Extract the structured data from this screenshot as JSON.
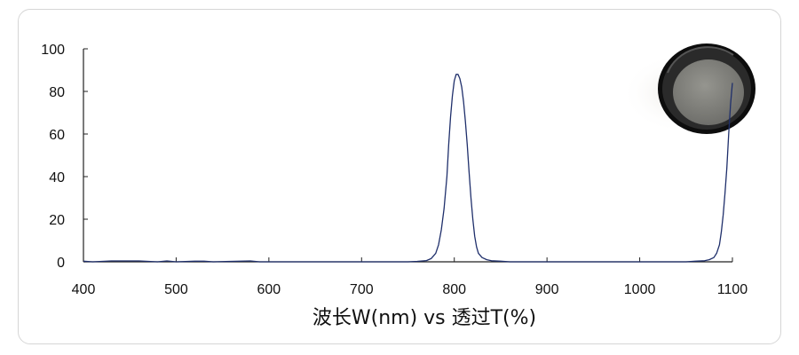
{
  "chart_data": {
    "type": "line",
    "title": "",
    "xlabel": "波长W(nm) vs 透过T(%)",
    "ylabel": "",
    "xlim": [
      400,
      1100
    ],
    "ylim": [
      0,
      100
    ],
    "x_ticks": [
      400,
      500,
      600,
      700,
      800,
      900,
      1000,
      1100
    ],
    "y_ticks": [
      0,
      20,
      40,
      60,
      80,
      100
    ],
    "grid": false,
    "series": [
      {
        "color": "#1f2f6b",
        "points": [
          [
            400,
            0.3
          ],
          [
            410,
            0
          ],
          [
            430,
            0.4
          ],
          [
            440,
            0.4
          ],
          [
            460,
            0.4
          ],
          [
            480,
            0
          ],
          [
            490,
            0.4
          ],
          [
            500,
            0
          ],
          [
            520,
            0.3
          ],
          [
            530,
            0.3
          ],
          [
            540,
            0
          ],
          [
            580,
            0.4
          ],
          [
            590,
            0
          ],
          [
            700,
            0
          ],
          [
            750,
            0
          ],
          [
            760,
            0.2
          ],
          [
            770,
            0.6
          ],
          [
            775,
            1.5
          ],
          [
            780,
            4
          ],
          [
            783,
            8
          ],
          [
            786,
            15
          ],
          [
            789,
            25
          ],
          [
            792,
            40
          ],
          [
            794,
            55
          ],
          [
            796,
            68
          ],
          [
            798,
            78
          ],
          [
            800,
            85
          ],
          [
            802,
            88
          ],
          [
            804,
            88
          ],
          [
            806,
            86
          ],
          [
            808,
            82
          ],
          [
            810,
            75
          ],
          [
            812,
            66
          ],
          [
            814,
            55
          ],
          [
            816,
            42
          ],
          [
            818,
            30
          ],
          [
            820,
            20
          ],
          [
            822,
            12
          ],
          [
            824,
            7
          ],
          [
            826,
            4
          ],
          [
            830,
            2
          ],
          [
            835,
            1
          ],
          [
            840,
            0.5
          ],
          [
            850,
            0.3
          ],
          [
            860,
            0
          ],
          [
            1000,
            0
          ],
          [
            1050,
            0
          ],
          [
            1060,
            0.3
          ],
          [
            1070,
            0.5
          ],
          [
            1075,
            1
          ],
          [
            1080,
            2
          ],
          [
            1083,
            4
          ],
          [
            1086,
            8
          ],
          [
            1088,
            14
          ],
          [
            1090,
            22
          ],
          [
            1092,
            32
          ],
          [
            1094,
            44
          ],
          [
            1096,
            60
          ],
          [
            1098,
            74
          ],
          [
            1100,
            84
          ]
        ]
      }
    ]
  },
  "image": {
    "icon": "optical-filter-lens-icon",
    "rim_color": "#0d0d0d",
    "glass_color": "#7d7d78"
  }
}
